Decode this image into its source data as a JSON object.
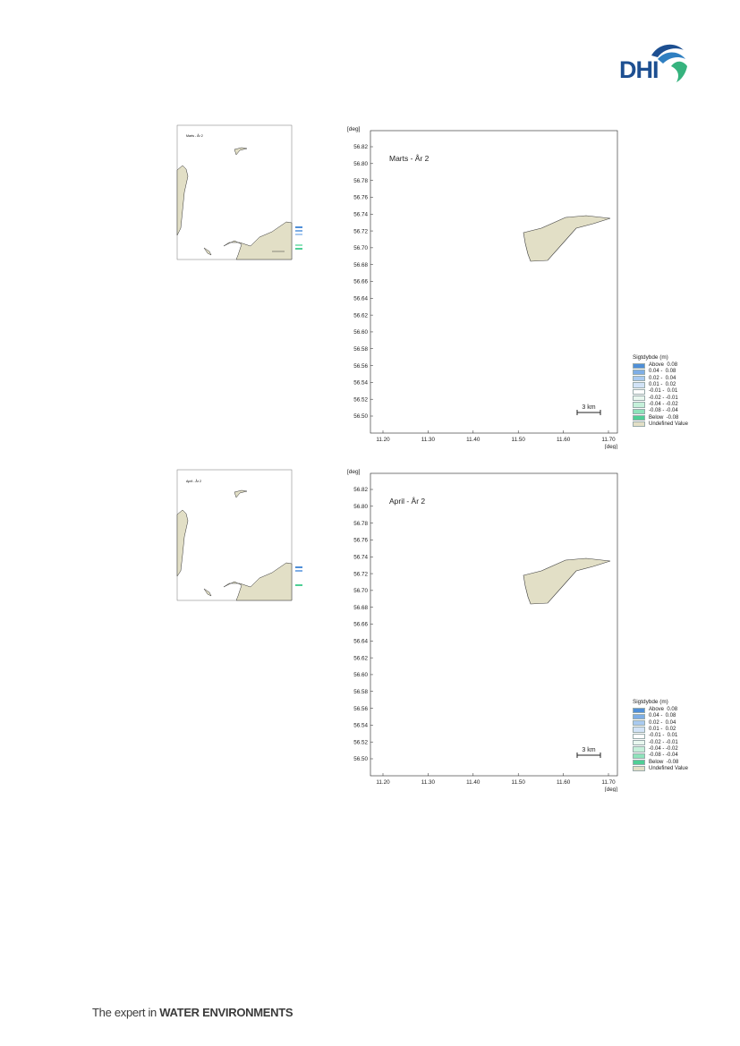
{
  "header": {
    "logo_text": "DHI"
  },
  "footer": {
    "tagline_prefix": "The expert in ",
    "tagline_bold": "WATER ENVIRONMENTS"
  },
  "colors": {
    "land": "#e2dfc6",
    "land_stroke": "#3b3b3b",
    "axis": "#222222",
    "logo_blue": "#1d4f91",
    "logo_green": "#36b37e"
  },
  "panels": [
    {
      "id": "marts",
      "title": "Marts - År 2",
      "axis_unit": "[deg]",
      "y_ticks": [
        "56.82",
        "56.80",
        "56.78",
        "56.76",
        "56.74",
        "56.72",
        "56.70",
        "56.68",
        "56.66",
        "56.64",
        "56.62",
        "56.60",
        "56.58",
        "56.56",
        "56.54",
        "56.52",
        "56.50"
      ],
      "x_ticks": [
        "11.20",
        "11.30",
        "11.40",
        "11.50",
        "11.60",
        "11.70"
      ],
      "scale_bar": "3 km",
      "legend": {
        "title": "Sigtdybde (m)",
        "items": [
          {
            "label": "Above  0.08",
            "color": "#4f8fd8"
          },
          {
            "label": "0.04 -  0.08",
            "color": "#7eaee6"
          },
          {
            "label": "0.02 -  0.04",
            "color": "#a9caf0"
          },
          {
            "label": "0.01 -  0.02",
            "color": "#d2e3f7"
          },
          {
            "label": "-0.01 -  0.01",
            "color": "#ffffff"
          },
          {
            "label": "-0.02 - -0.01",
            "color": "#e9f7ef"
          },
          {
            "label": "-0.04 - -0.02",
            "color": "#c5f0da"
          },
          {
            "label": "-0.08 - -0.04",
            "color": "#8fe3bb"
          },
          {
            "label": "Below  -0.08",
            "color": "#4fcf95"
          },
          {
            "label": "Undefined Value",
            "color": "#e2dfc6"
          }
        ]
      }
    },
    {
      "id": "april",
      "title": "April - År 2",
      "axis_unit": "[deg]",
      "y_ticks": [
        "56.82",
        "56.80",
        "56.78",
        "56.76",
        "56.74",
        "56.72",
        "56.70",
        "56.68",
        "56.66",
        "56.64",
        "56.62",
        "56.60",
        "56.58",
        "56.56",
        "56.54",
        "56.52",
        "56.50"
      ],
      "x_ticks": [
        "11.20",
        "11.30",
        "11.40",
        "11.50",
        "11.60",
        "11.70"
      ],
      "scale_bar": "3 km",
      "legend": {
        "title": "Sigtdybde (m)",
        "items": [
          {
            "label": "Above  0.08",
            "color": "#4f8fd8"
          },
          {
            "label": "0.04 -  0.08",
            "color": "#7eaee6"
          },
          {
            "label": "0.02 -  0.04",
            "color": "#a9caf0"
          },
          {
            "label": "0.01 -  0.02",
            "color": "#d2e3f7"
          },
          {
            "label": "-0.01 -  0.01",
            "color": "#ffffff"
          },
          {
            "label": "-0.02 - -0.01",
            "color": "#e9f7ef"
          },
          {
            "label": "-0.04 - -0.02",
            "color": "#c5f0da"
          },
          {
            "label": "-0.08 - -0.04",
            "color": "#8fe3bb"
          },
          {
            "label": "Below  -0.08",
            "color": "#4fcf95"
          },
          {
            "label": "Undefined Value",
            "color": "#e2dfc6"
          }
        ]
      }
    }
  ],
  "thumbs": [
    {
      "id": "marts-thumb",
      "title": "Marts - År 2"
    },
    {
      "id": "april-thumb",
      "title": "April - År 2"
    }
  ]
}
